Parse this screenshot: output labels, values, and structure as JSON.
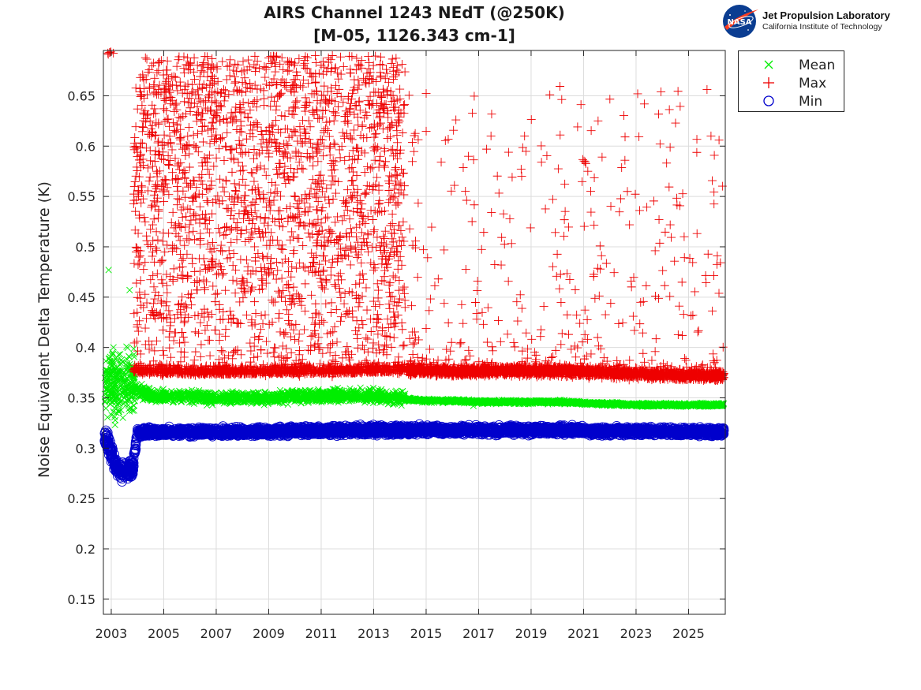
{
  "header": {
    "title_line1": "AIRS Channel 1243 NEdT (@250K)",
    "title_line2": "[M-05, 1126.343 cm-1]"
  },
  "logo": {
    "nasa_text": "NASA",
    "name": "Jet Propulsion Laboratory",
    "subtitle": "California Institute of Technology"
  },
  "colors": {
    "mean": "#00ee00",
    "max": "#ee0000",
    "min": "#0000cc",
    "grid": "#dcdcdc",
    "axis": "#262626"
  },
  "chart_data": {
    "type": "scatter",
    "title": "AIRS Channel 1243 NEdT (@250K)",
    "subtitle": "[M-05, 1126.343 cm-1]",
    "xlabel": "",
    "ylabel": "Noise Equivalent Delta Temperature (K)",
    "xlim": [
      2002.7,
      2026.4
    ],
    "ylim": [
      0.135,
      0.695
    ],
    "xticks": [
      2003,
      2005,
      2007,
      2009,
      2011,
      2013,
      2015,
      2017,
      2019,
      2021,
      2023,
      2025
    ],
    "xtick_labels": [
      "2003",
      "2005",
      "2007",
      "2009",
      "2011",
      "2013",
      "2015",
      "2017",
      "2019",
      "2021",
      "2023",
      "2025"
    ],
    "yticks": [
      0.15,
      0.2,
      0.25,
      0.3,
      0.35,
      0.4,
      0.45,
      0.5,
      0.55,
      0.6,
      0.65
    ],
    "ytick_labels": [
      "0.15",
      "0.2",
      "0.25",
      "0.3",
      "0.35",
      "0.4",
      "0.45",
      "0.5",
      "0.55",
      "0.6",
      "0.65"
    ],
    "grid": true,
    "legend_position": "outside-top-right",
    "series": [
      {
        "name": "Mean",
        "marker": "x",
        "color": "#00ee00",
        "approx_x": [
          2002.8,
          2002.9,
          2003.0,
          2003.2,
          2003.4,
          2003.6,
          2003.8,
          2004.5,
          2005.0,
          2006.0,
          2007.0,
          2008.0,
          2009.0,
          2010.0,
          2011.0,
          2012.0,
          2013.0,
          2014.0,
          2014.5,
          2015.0,
          2016.0,
          2017.0,
          2018.0,
          2019.0,
          2020.0,
          2021.0,
          2022.0,
          2023.0,
          2024.0,
          2025.0,
          2026.0
        ],
        "approx_y": [
          0.365,
          0.375,
          0.37,
          0.365,
          0.36,
          0.37,
          0.36,
          0.352,
          0.351,
          0.351,
          0.349,
          0.35,
          0.35,
          0.351,
          0.352,
          0.352,
          0.352,
          0.35,
          0.348,
          0.347,
          0.347,
          0.346,
          0.346,
          0.346,
          0.346,
          0.345,
          0.344,
          0.343,
          0.343,
          0.343,
          0.343
        ]
      },
      {
        "name": "Max",
        "marker": "+",
        "color": "#ee0000",
        "baseline_x": [
          2003.8,
          2006.0,
          2008.0,
          2010.0,
          2012.0,
          2014.2,
          2014.3,
          2016.0,
          2018.0,
          2020.0,
          2022.0,
          2024.0,
          2026.3
        ],
        "baseline_y": [
          0.375,
          0.373,
          0.373,
          0.374,
          0.374,
          0.376,
          0.378,
          0.376,
          0.377,
          0.377,
          0.375,
          0.373,
          0.372
        ],
        "scatter_band_until_2014": [
          0.37,
          0.69
        ],
        "sparse_outlier_range_after_2014": [
          0.38,
          0.66
        ]
      },
      {
        "name": "Min",
        "marker": "o",
        "color": "#0000cc",
        "approx_x": [
          2002.8,
          2003.0,
          2003.2,
          2003.5,
          2003.8,
          2004.0,
          2006.0,
          2008.0,
          2010.0,
          2012.0,
          2014.0,
          2016.0,
          2018.0,
          2020.0,
          2022.0,
          2024.0,
          2026.3
        ],
        "approx_y": [
          0.31,
          0.295,
          0.28,
          0.277,
          0.278,
          0.316,
          0.316,
          0.316,
          0.317,
          0.318,
          0.318,
          0.318,
          0.318,
          0.318,
          0.317,
          0.317,
          0.316
        ]
      }
    ]
  }
}
